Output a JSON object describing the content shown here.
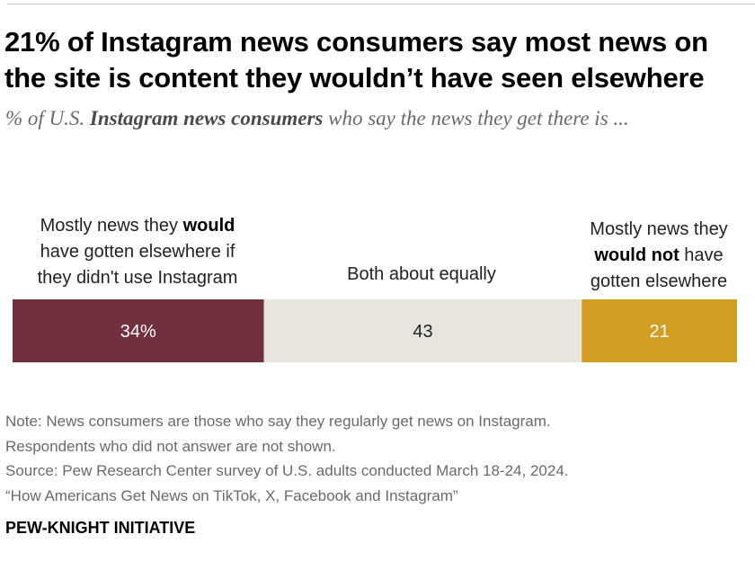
{
  "title": "21% of Instagram news consumers say most news on the site is content they wouldn’t have seen elsewhere",
  "subtitle": {
    "prefix": "% of U.S. ",
    "emphasis": "Instagram news consumers",
    "suffix": " who say the news they get there is ..."
  },
  "chart_data": {
    "type": "bar",
    "orientation": "horizontal",
    "stacked": true,
    "unit": "%",
    "categories": [
      "Mostly news they would have gotten elsewhere if they didn't use Instagram",
      "Both about equally",
      "Mostly news they would not have gotten elsewhere"
    ],
    "values": [
      34,
      43,
      21
    ],
    "data_labels": [
      "34%",
      "43",
      "21"
    ],
    "colors": [
      "#722f3d",
      "#e8e5df",
      "#d29e22"
    ],
    "label_colors": [
      "#ffffff",
      "#222222",
      "#ffffff"
    ],
    "xlim": [
      0,
      98
    ],
    "grid": false,
    "legend": "none"
  },
  "category_labels": {
    "left": {
      "before": "Mostly news they ",
      "bold": "would",
      "line2": "have gotten elsewhere if",
      "line3": "they didn't use Instagram"
    },
    "middle": {
      "text": "Both about equally"
    },
    "right": {
      "line1": "Mostly news they",
      "bold": "would not",
      "after": " have",
      "line3": "gotten elsewhere"
    }
  },
  "notes": [
    "Note: News consumers are those who say they regularly get news on Instagram.",
    "Respondents who did not answer are not shown.",
    "Source: Pew Research Center survey of U.S. adults conducted March 18-24, 2024.",
    "“How Americans Get News on TikTok, X, Facebook and Instagram”"
  ],
  "brand": "PEW-KNIGHT INITIATIVE"
}
